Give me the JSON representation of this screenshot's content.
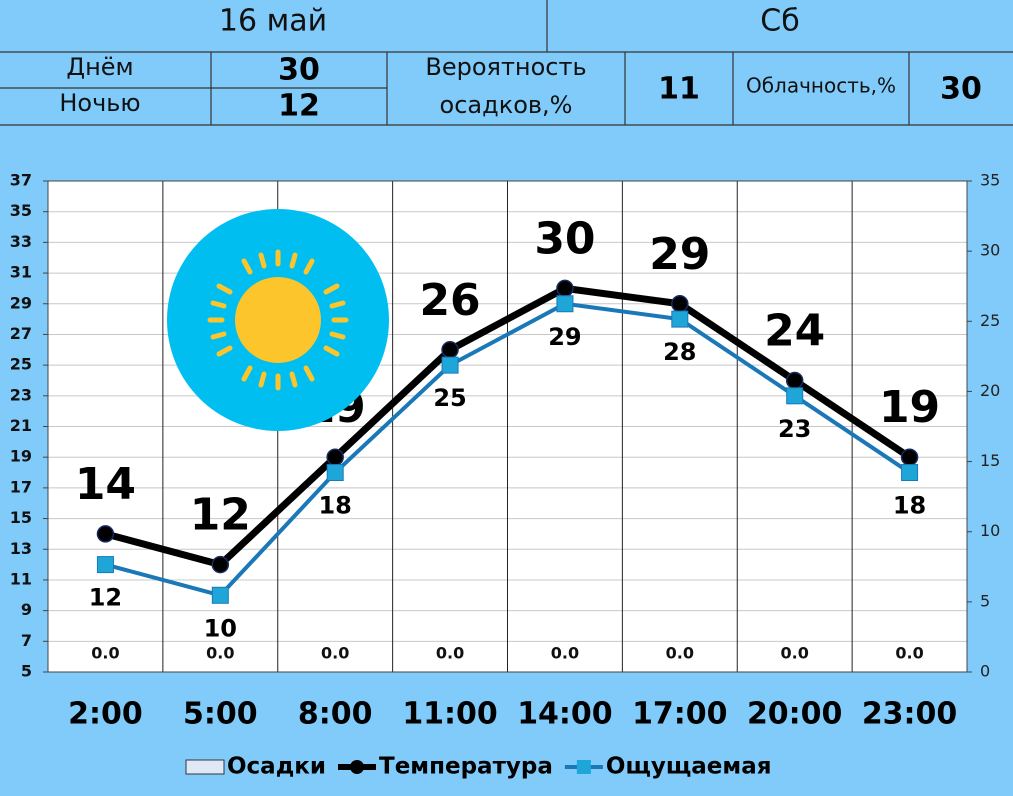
{
  "header": {
    "date": "16 май",
    "weekday": "Сб",
    "day_label": "Днём",
    "day_value": 30,
    "night_label": "Ночью",
    "night_value": 12,
    "precip_label_1": "Вероятность",
    "precip_label_2": "осадков,%",
    "precip_value": 11,
    "cloud_label": "Облачность,%",
    "cloud_value": 30
  },
  "chart_data": {
    "type": "line",
    "categories": [
      "2:00",
      "5:00",
      "8:00",
      "11:00",
      "14:00",
      "17:00",
      "20:00",
      "23:00"
    ],
    "series": [
      {
        "name": "Осадки",
        "type": "bar",
        "axis": "y2",
        "color": "#dfe8f5",
        "values": [
          0,
          0,
          0,
          0,
          0,
          0,
          0,
          0
        ],
        "value_labels": [
          "0.0",
          "0.0",
          "0.0",
          "0.0",
          "0.0",
          "0.0",
          "0.0",
          "0.0"
        ]
      },
      {
        "name": "Температура",
        "type": "line",
        "color": "#000000",
        "values": [
          14,
          12,
          19,
          26,
          30,
          29,
          24,
          19
        ]
      },
      {
        "name": "Ощущаемая",
        "type": "line",
        "color": "#1a78b8",
        "values": [
          12,
          10,
          18,
          25,
          29,
          28,
          23,
          18
        ]
      }
    ],
    "ylim": [
      5,
      37
    ],
    "yticks": [
      5,
      7,
      9,
      11,
      13,
      15,
      17,
      19,
      21,
      23,
      25,
      27,
      29,
      31,
      33,
      35,
      37
    ],
    "y2lim": [
      0,
      35
    ],
    "y2ticks": [
      0,
      5,
      10,
      15,
      20,
      25,
      30,
      35
    ],
    "grid": true
  }
}
